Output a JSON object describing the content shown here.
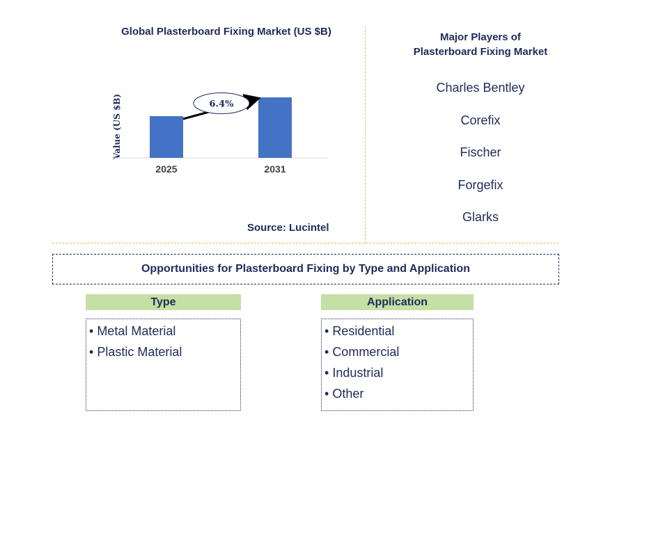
{
  "chart": {
    "title": "Global Plasterboard Fixing Market (US $B)",
    "source": "Source: Lucintel"
  },
  "chart_data": {
    "type": "bar",
    "title": "Global Plasterboard Fixing Market (US $B)",
    "categories": [
      "2025",
      "2031"
    ],
    "values": [
      1.0,
      1.45
    ],
    "ylabel": "Value (US $B)",
    "xlabel": "",
    "ylim": [
      0,
      1.5
    ],
    "grid": false,
    "bar_color": "#4472c4",
    "annotation": {
      "label": "6.4%",
      "from": "2025",
      "to": "2031"
    }
  },
  "players": {
    "title_line1": "Major Players of",
    "title_line2": "Plasterboard Fixing Market",
    "items": [
      "Charles Bentley",
      "Corefix",
      "Fischer",
      "Forgefix",
      "Glarks"
    ]
  },
  "opportunities": {
    "title": "Opportunities for Plasterboard Fixing by Type and Application",
    "type": {
      "header": "Type",
      "items": [
        "Metal Material",
        "Plastic Material"
      ]
    },
    "application": {
      "header": "Application",
      "items": [
        "Residential",
        "Commercial",
        "Industrial",
        "Other"
      ]
    }
  },
  "colors": {
    "text": "#1f2a5a",
    "bar": "#4472c4",
    "header_bg": "#c5e0a5",
    "divider": "#e8b94a"
  }
}
